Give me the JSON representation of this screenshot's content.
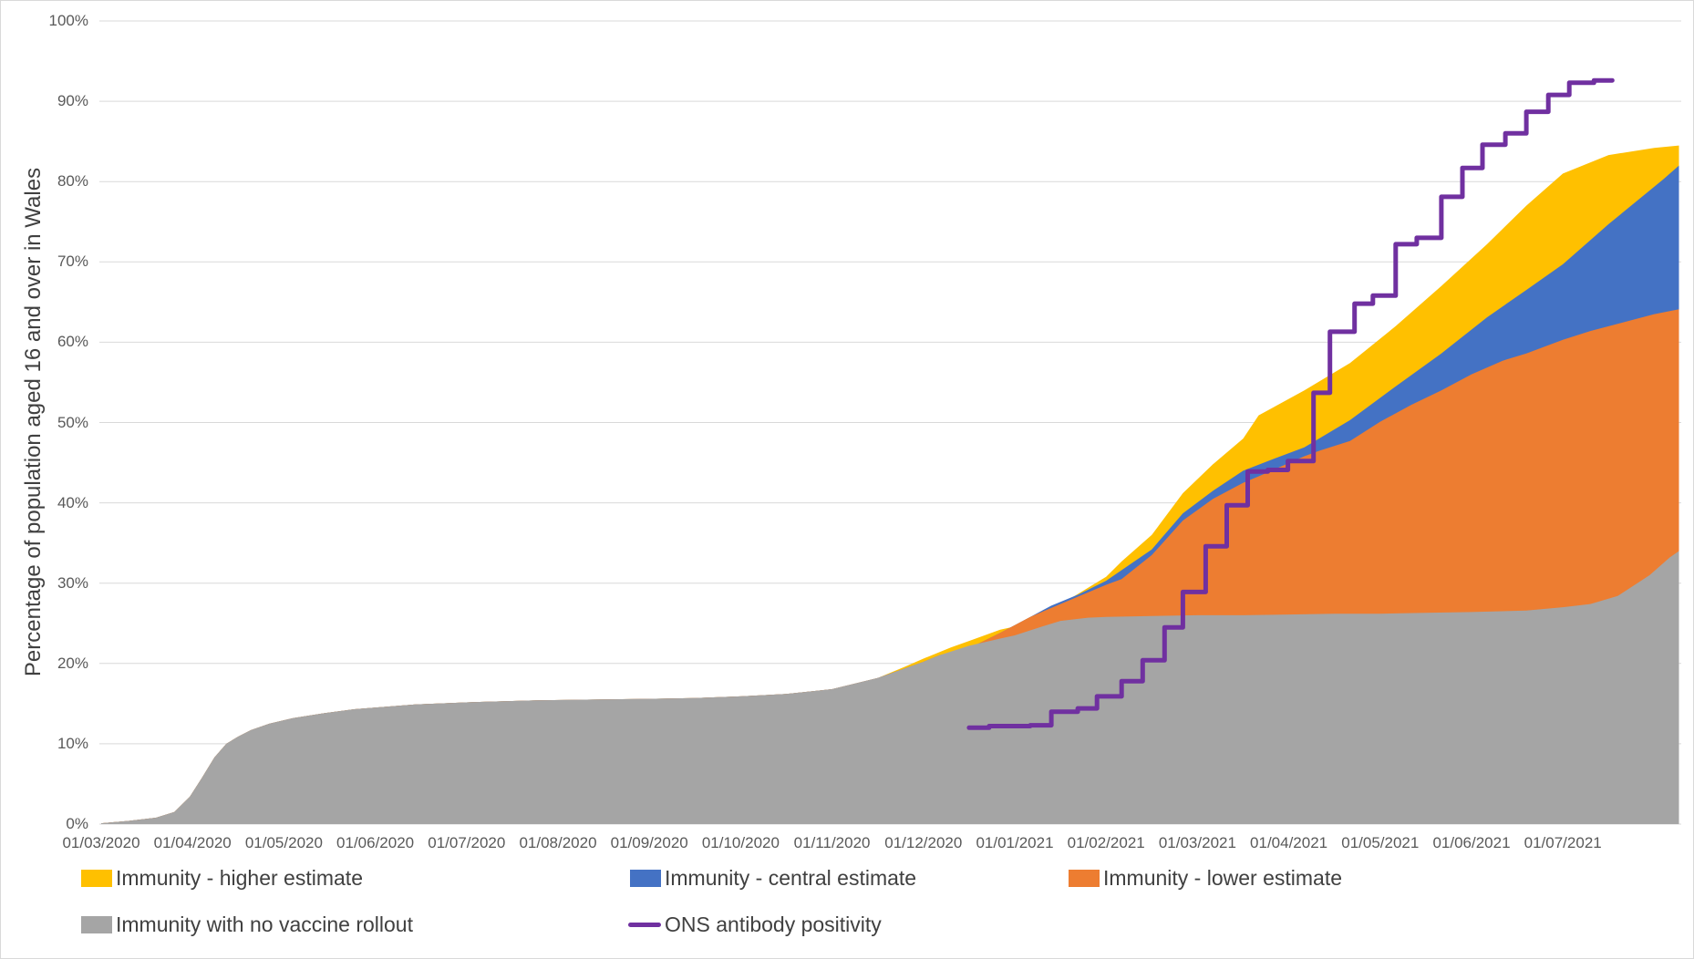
{
  "y_axis": {
    "title": "Percentage of population aged 16 and over in Wales"
  },
  "legend": {
    "items": [
      {
        "label": "Immunity - higher estimate",
        "color": "#FFC000",
        "marker": "square"
      },
      {
        "label": "Immunity - central estimate",
        "color": "#4472C4",
        "marker": "square"
      },
      {
        "label": "Immunity - lower estimate",
        "color": "#ED7D31",
        "marker": "square"
      },
      {
        "label": "Immunity with no vaccine rollout",
        "color": "#A5A5A5",
        "marker": "square"
      },
      {
        "label": "ONS antibody positivity",
        "color": "#7030A0",
        "marker": "line"
      }
    ]
  },
  "colors": {
    "gridline": "#D9D9D9",
    "axis_text": "#595959",
    "legend_text": "#404040",
    "frame_border": "#D9D9D9",
    "background": "#FFFFFF"
  },
  "chart_data": {
    "type": "area",
    "title": "",
    "xlabel": "",
    "ylabel": "Percentage of population aged 16 and over in Wales",
    "ylim": [
      0,
      100
    ],
    "grid": "horizontal",
    "legend_position": "bottom",
    "x_unit": "months since 01/03/2020",
    "x_tick_labels": [
      "01/03/2020",
      "01/04/2020",
      "01/05/2020",
      "01/06/2020",
      "01/07/2020",
      "01/08/2020",
      "01/09/2020",
      "01/10/2020",
      "01/11/2020",
      "01/12/2020",
      "01/01/2021",
      "01/02/2021",
      "01/03/2021",
      "01/04/2021",
      "01/05/2021",
      "01/06/2021",
      "01/07/2021"
    ],
    "y_tick_labels": [
      "0%",
      "10%",
      "20%",
      "30%",
      "40%",
      "50%",
      "60%",
      "70%",
      "80%",
      "90%",
      "100%"
    ],
    "x_end": 17.27,
    "series": [
      {
        "name": "Immunity - higher estimate",
        "type": "area",
        "color": "#FFC000",
        "follows_baseline_until": 8.5,
        "points": [
          [
            8.8,
            19.6
          ],
          [
            9,
            20.6
          ],
          [
            9.3,
            22.0
          ],
          [
            9.5,
            22.8
          ],
          [
            9.84,
            24.2
          ],
          [
            10,
            24.6
          ],
          [
            10.4,
            26.8
          ],
          [
            10.67,
            28.5
          ],
          [
            11,
            30.8
          ],
          [
            11.17,
            32.7
          ],
          [
            11.5,
            36.0
          ],
          [
            11.84,
            41.2
          ],
          [
            12.17,
            44.8
          ],
          [
            12.5,
            48.0
          ],
          [
            12.67,
            50.9
          ],
          [
            13.17,
            54.0
          ],
          [
            13.67,
            57.4
          ],
          [
            14.17,
            62.0
          ],
          [
            14.67,
            67.0
          ],
          [
            15.17,
            72.2
          ],
          [
            15.6,
            77.0
          ],
          [
            16,
            81.0
          ],
          [
            16.5,
            83.3
          ],
          [
            17,
            84.2
          ],
          [
            17.27,
            84.5
          ]
        ]
      },
      {
        "name": "Immunity - central estimate",
        "type": "area",
        "color": "#4472C4",
        "follows_baseline_until": 9.17,
        "points": [
          [
            9.3,
            21.4
          ],
          [
            9.5,
            21.9
          ],
          [
            9.84,
            23.8
          ],
          [
            10.17,
            25.8
          ],
          [
            10.4,
            27.2
          ],
          [
            10.7,
            28.6
          ],
          [
            11,
            30.3
          ],
          [
            11.5,
            34.2
          ],
          [
            11.84,
            38.7
          ],
          [
            12.17,
            41.5
          ],
          [
            12.5,
            44.0
          ],
          [
            12.84,
            45.5
          ],
          [
            13.17,
            46.9
          ],
          [
            13.67,
            50.3
          ],
          [
            14.17,
            54.5
          ],
          [
            14.67,
            58.6
          ],
          [
            15.17,
            63.1
          ],
          [
            15.6,
            66.5
          ],
          [
            16,
            69.7
          ],
          [
            16.5,
            74.7
          ],
          [
            16.94,
            78.8
          ],
          [
            17.1,
            80.3
          ],
          [
            17.27,
            82.0
          ]
        ]
      },
      {
        "name": "Immunity - lower estimate",
        "type": "area",
        "color": "#ED7D31",
        "follows_baseline_until": 9.17,
        "points": [
          [
            9.3,
            21.4
          ],
          [
            9.5,
            21.9
          ],
          [
            9.84,
            23.8
          ],
          [
            10.17,
            25.8
          ],
          [
            10.5,
            27.4
          ],
          [
            11,
            29.8
          ],
          [
            11.17,
            30.5
          ],
          [
            11.5,
            33.5
          ],
          [
            11.84,
            37.8
          ],
          [
            12.17,
            40.5
          ],
          [
            12.5,
            42.5
          ],
          [
            12.67,
            43.3
          ],
          [
            13.17,
            45.8
          ],
          [
            13.34,
            46.5
          ],
          [
            13.67,
            47.7
          ],
          [
            14,
            50.1
          ],
          [
            14.34,
            52.2
          ],
          [
            14.67,
            54.0
          ],
          [
            15,
            56.0
          ],
          [
            15.34,
            57.7
          ],
          [
            15.6,
            58.6
          ],
          [
            16,
            60.3
          ],
          [
            16.3,
            61.4
          ],
          [
            16.67,
            62.5
          ],
          [
            17,
            63.5
          ],
          [
            17.27,
            64.1
          ]
        ]
      },
      {
        "name": "Immunity with no vaccine rollout",
        "type": "area",
        "color": "#A5A5A5",
        "baseline": true,
        "points": [
          [
            0,
            0.1
          ],
          [
            0.3,
            0.4
          ],
          [
            0.6,
            0.8
          ],
          [
            0.8,
            1.5
          ],
          [
            0.97,
            3.4
          ],
          [
            1.1,
            5.7
          ],
          [
            1.24,
            8.3
          ],
          [
            1.37,
            10.0
          ],
          [
            1.5,
            10.9
          ],
          [
            1.64,
            11.7
          ],
          [
            1.84,
            12.5
          ],
          [
            2.1,
            13.2
          ],
          [
            2.44,
            13.8
          ],
          [
            2.77,
            14.3
          ],
          [
            3.44,
            14.9
          ],
          [
            4.1,
            15.2
          ],
          [
            4.77,
            15.4
          ],
          [
            5.4,
            15.5
          ],
          [
            6,
            15.6
          ],
          [
            6.5,
            15.7
          ],
          [
            7,
            15.9
          ],
          [
            7.5,
            16.2
          ],
          [
            8,
            16.8
          ],
          [
            8.5,
            18.2
          ],
          [
            9,
            20.2
          ],
          [
            9.17,
            21.0
          ],
          [
            9.5,
            22.2
          ],
          [
            9.84,
            23.1
          ],
          [
            10,
            23.5
          ],
          [
            10.3,
            24.6
          ],
          [
            10.5,
            25.3
          ],
          [
            10.8,
            25.7
          ],
          [
            11,
            25.8
          ],
          [
            11.5,
            25.9
          ],
          [
            12,
            26.0
          ],
          [
            12.5,
            26.0
          ],
          [
            13,
            26.1
          ],
          [
            13.5,
            26.2
          ],
          [
            14,
            26.2
          ],
          [
            14.5,
            26.3
          ],
          [
            15,
            26.4
          ],
          [
            15.6,
            26.6
          ],
          [
            16,
            27.0
          ],
          [
            16.3,
            27.4
          ],
          [
            16.6,
            28.4
          ],
          [
            16.95,
            31.0
          ],
          [
            17.17,
            33.2
          ],
          [
            17.27,
            34.0
          ]
        ]
      },
      {
        "name": "ONS antibody positivity",
        "type": "step-line",
        "color": "#7030A0",
        "stroke_width": 5,
        "end_x": 16.54,
        "points": [
          [
            9.5,
            12.0
          ],
          [
            9.72,
            12.2
          ],
          [
            9.95,
            12.2
          ],
          [
            10.17,
            12.3
          ],
          [
            10.4,
            14.0
          ],
          [
            10.69,
            14.4
          ],
          [
            10.9,
            15.9
          ],
          [
            11.17,
            17.8
          ],
          [
            11.4,
            20.4
          ],
          [
            11.64,
            24.5
          ],
          [
            11.84,
            28.9
          ],
          [
            12.09,
            34.6
          ],
          [
            12.32,
            39.7
          ],
          [
            12.55,
            43.9
          ],
          [
            12.77,
            44.1
          ],
          [
            12.99,
            45.2
          ],
          [
            13.27,
            53.7
          ],
          [
            13.45,
            61.3
          ],
          [
            13.72,
            64.8
          ],
          [
            13.92,
            65.8
          ],
          [
            14.17,
            72.2
          ],
          [
            14.4,
            73.0
          ],
          [
            14.67,
            78.1
          ],
          [
            14.9,
            81.7
          ],
          [
            15.12,
            84.6
          ],
          [
            15.37,
            86.0
          ],
          [
            15.6,
            88.7
          ],
          [
            15.84,
            90.8
          ],
          [
            16.07,
            92.3
          ],
          [
            16.34,
            92.6
          ]
        ]
      }
    ]
  }
}
